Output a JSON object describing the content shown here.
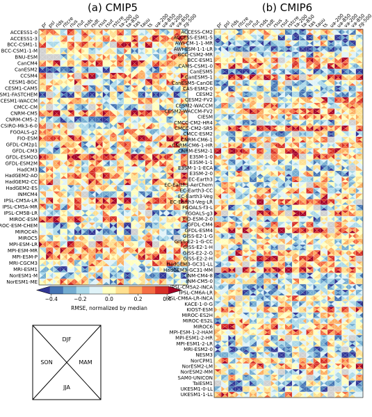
{
  "chart_data": [
    {
      "type": "heatmap",
      "title": "(a) CMIP5",
      "variables": [
        "pr",
        "psl",
        "rlds",
        "rltcre",
        "rlus",
        "rlut",
        "rsds",
        "rsdt",
        "rsus",
        "rsut",
        "rstcre",
        "ta-200",
        "ta-850",
        "tas",
        "tauu",
        "ts",
        "ua-200",
        "ua-850",
        "va-200",
        "va-850",
        "zg-500"
      ],
      "models": [
        "ACCESS1-0",
        "ACCESS1-3",
        "BCC-CSM1-1",
        "BCC-CSM1-1-M",
        "BNU-ESM",
        "CanCM4",
        "CanESM2",
        "CCSM4",
        "CESM1-BGC",
        "CESM1-CAM5",
        "CESM1-FASTCHEM",
        "CESM1-WACCM",
        "CMCC-CM",
        "CNRM-CM5",
        "CNRM-CM5-2",
        "CSIRO-Mk3-6-0",
        "FGOALS-g2",
        "FIO-ESM",
        "GFDL-CM2p1",
        "GFDL-CM3",
        "GFDL-ESM2G",
        "GFDL-ESM2M",
        "HadCM3",
        "HadGEM2-AO",
        "HadGEM2-CC",
        "HadGEM2-ES",
        "INMCM4",
        "IPSL-CM5A-LR",
        "IPSL-CM5A-MR",
        "IPSL-CM5B-LR",
        "MIROC-ESM",
        "MIROC-ESM-CHEM",
        "MIROC4h",
        "MIROC5",
        "MPI-ESM-LR",
        "MPI-ESM-MR",
        "MPI-ESM-P",
        "MRI-CGCM3",
        "MRI-ESM1",
        "NorESM1-M",
        "NorESM1-ME"
      ]
    },
    {
      "type": "heatmap",
      "title": "(b) CMIP6",
      "variables": [
        "pr",
        "psl",
        "rlds",
        "rltcre",
        "rlus",
        "rlut",
        "rsds",
        "rsdt",
        "rsus",
        "rsut",
        "rstcre",
        "ta-200",
        "ta-850",
        "tas",
        "tauu",
        "ts",
        "ua-200",
        "ua-850",
        "va-200",
        "va-850",
        "zg-500"
      ],
      "models": [
        "ACCESS-CM2",
        "ACCESS-ESM1-5",
        "AWI-CM-1-1-MR",
        "AWI-ESM-1-1-LR",
        "BCC-CSM2-MR",
        "BCC-ESM1",
        "CAMS-CSM1-0",
        "CanESM5",
        "CanESM5-1",
        "CanESM5-CanOE",
        "CAS-ESM2-0",
        "CESM2",
        "CESM2-FV2",
        "CESM2-WACCM",
        "CESM2-WACCM-FV2",
        "CIESM",
        "CMCC-CM2-HR4",
        "CMCC-CM2-SR5",
        "CMCC-ESM2",
        "CNRM-CM6-1",
        "CNRM-CM6-1-HR",
        "CNRM-ESM2-1",
        "E3SM-1-0",
        "E3SM-1-1",
        "E3SM-1-1-ECA",
        "E3SM-2-0",
        "EC-Earth3",
        "EC-Earth3-AerChem",
        "EC-Earth3-CC",
        "EC-Earth3-Veg",
        "EC-Earth3-Veg-LR",
        "FGOALS-f3-L",
        "FGOALS-g3",
        "FIO-ESM-2-0",
        "GFDL-CM4",
        "GFDL-ESM4",
        "GISS-E2-1-G",
        "GISS-E2-1-G-CC",
        "GISS-E2-1-H",
        "GISS-E2-2-G",
        "GISS-E2-2-H",
        "HadGEM3-GC31-LL",
        "HadGEM3-GC31-MM",
        "INM-CM4-8",
        "INM-CM5-0",
        "IPSL-CM5A2-INCA",
        "IPSL-CM6A-LR",
        "IPSL-CM6A-LR-INCA",
        "KACE-1-0-G",
        "KIOST-ESM",
        "MIROC-ES2H",
        "MIROC-ES2L",
        "MIROC6",
        "MPI-ESM-1-2-HAM",
        "MPI-ESM1-2-HR",
        "MPI-ESM1-2-LR",
        "MRI-ESM2-0",
        "NESM3",
        "NorCPM1",
        "NorESM2-LM",
        "NorESM2-MM",
        "SAM0-UNICON",
        "TaiESM1",
        "UKESM1-0-LL",
        "UKESM1-1-LL"
      ]
    }
  ],
  "colorbar": {
    "label": "RMSE, normalized by median",
    "ticks": [
      "−0.4",
      "−0.2",
      "0.0",
      "0.2",
      "0.4"
    ],
    "range": [
      -0.5,
      0.5
    ],
    "colors": [
      "#313695",
      "#4575b4",
      "#74add1",
      "#abd9e9",
      "#e0f3f8",
      "#ffffbf",
      "#fee090",
      "#fdae61",
      "#f46d43",
      "#d73027",
      "#a50026"
    ]
  },
  "season_legend": {
    "top": "DJF",
    "right": "MAM",
    "bottom": "JJA",
    "left": "SON"
  }
}
